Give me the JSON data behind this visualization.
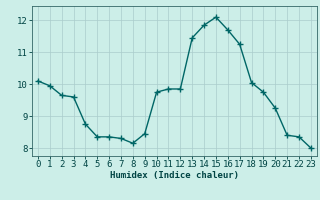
{
  "title": "",
  "xlabel": "Humidex (Indice chaleur)",
  "ylabel": "",
  "background_color": "#cceee8",
  "grid_color": "#aacccc",
  "line_color": "#006666",
  "marker_color": "#006666",
  "x": [
    0,
    1,
    2,
    3,
    4,
    5,
    6,
    7,
    8,
    9,
    10,
    11,
    12,
    13,
    14,
    15,
    16,
    17,
    18,
    19,
    20,
    21,
    22,
    23
  ],
  "y": [
    10.1,
    9.95,
    9.65,
    9.6,
    8.75,
    8.35,
    8.35,
    8.3,
    8.15,
    8.45,
    9.75,
    9.85,
    9.85,
    11.45,
    11.85,
    12.1,
    11.7,
    11.25,
    10.05,
    9.75,
    9.25,
    8.4,
    8.35,
    8.0
  ],
  "ylim": [
    7.75,
    12.45
  ],
  "xlim": [
    -0.5,
    23.5
  ],
  "yticks": [
    8,
    9,
    10,
    11,
    12
  ],
  "xticks": [
    0,
    1,
    2,
    3,
    4,
    5,
    6,
    7,
    8,
    9,
    10,
    11,
    12,
    13,
    14,
    15,
    16,
    17,
    18,
    19,
    20,
    21,
    22,
    23
  ],
  "xlabel_fontsize": 6.5,
  "tick_fontsize": 6.5,
  "linewidth": 1.0,
  "markersize": 4
}
